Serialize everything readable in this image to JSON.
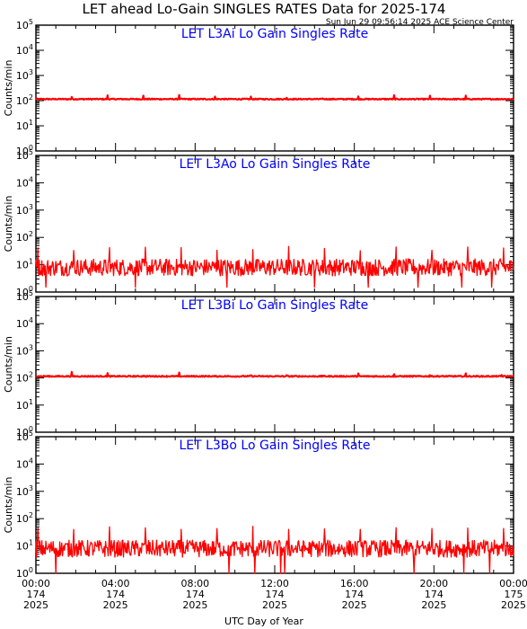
{
  "title": "LET ahead Lo-Gain SINGLES RATES Data for 2025-174",
  "timestamp": "Sun Jun 29 09:56:14 2025 ACE Science Center",
  "xlabel": "UTC Day of Year",
  "ylabel": "Counts/min",
  "x_ticks": [
    {
      "time": "00:00",
      "doy": "174",
      "year": "2025"
    },
    {
      "time": "04:00",
      "doy": "174",
      "year": "2025"
    },
    {
      "time": "08:00",
      "doy": "174",
      "year": "2025"
    },
    {
      "time": "12:00",
      "doy": "174",
      "year": "2025"
    },
    {
      "time": "16:00",
      "doy": "174",
      "year": "2025"
    },
    {
      "time": "20:00",
      "doy": "174",
      "year": "2025"
    },
    {
      "time": "00:00",
      "doy": "175",
      "year": "2025"
    }
  ],
  "y_tick_base": "10",
  "y_tick_exponents": [
    "0",
    "1",
    "2",
    "3",
    "4",
    "5"
  ],
  "colors": {
    "line": "#ff0000",
    "panel_title": "#0000ff",
    "axes": "#000000"
  },
  "chart_data": [
    {
      "type": "line",
      "title": "LET L3Ai Lo Gain Singles Rate",
      "ylabel": "Counts/min",
      "yscale": "log",
      "ylim": [
        1,
        100000
      ],
      "xlim_hours": [
        0,
        24
      ],
      "baseline": 115,
      "noise_fraction": 0.03,
      "spike_hours": [
        0.0,
        1.8,
        3.6,
        5.4,
        7.2,
        9.0,
        10.8,
        12.6,
        14.4,
        16.2,
        18.0,
        19.8,
        21.6,
        23.4
      ],
      "spike_value": 145
    },
    {
      "type": "line",
      "title": "LET L3Ao Lo Gain Singles Rate",
      "ylabel": "Counts/min",
      "yscale": "log",
      "ylim": [
        1,
        100000
      ],
      "xlim_hours": [
        0,
        24
      ],
      "baseline": 8,
      "noise_fraction": 0.45,
      "spike_hours": [
        0.1,
        1.9,
        3.7,
        5.5,
        7.3,
        9.1,
        10.9,
        12.7,
        14.5,
        16.3,
        18.1,
        19.9,
        21.7,
        23.5
      ],
      "spike_value": 40,
      "dip_hours": [
        0.5,
        5.0,
        9.6,
        14.0,
        16.7,
        19.2,
        21.4,
        22.9
      ],
      "dip_value": 1.5
    },
    {
      "type": "line",
      "title": "LET L3Bi Lo Gain Singles Rate",
      "ylabel": "Counts/min",
      "yscale": "log",
      "ylim": [
        1,
        100000
      ],
      "xlim_hours": [
        0,
        24
      ],
      "baseline": 115,
      "noise_fraction": 0.03,
      "spike_hours": [
        0.0,
        1.8,
        3.6,
        5.4,
        7.2,
        9.0,
        10.8,
        12.6,
        14.4,
        16.2,
        18.0,
        19.8,
        21.6,
        23.4
      ],
      "spike_value": 140
    },
    {
      "type": "line",
      "title": "LET L3Bo Lo Gain Singles Rate",
      "ylabel": "Counts/min",
      "yscale": "log",
      "ylim": [
        1,
        100000
      ],
      "xlim_hours": [
        0,
        24
      ],
      "baseline": 8,
      "noise_fraction": 0.45,
      "spike_hours": [
        0.1,
        1.9,
        3.7,
        5.5,
        7.3,
        9.1,
        10.9,
        12.7,
        14.5,
        16.3,
        18.1,
        19.9,
        21.7,
        23.5
      ],
      "spike_value": 45,
      "dip_hours": [
        1.0,
        9.7,
        11.0,
        12.3,
        12.5,
        19.0,
        21.5,
        22.8
      ],
      "dip_value": 1.0
    }
  ]
}
